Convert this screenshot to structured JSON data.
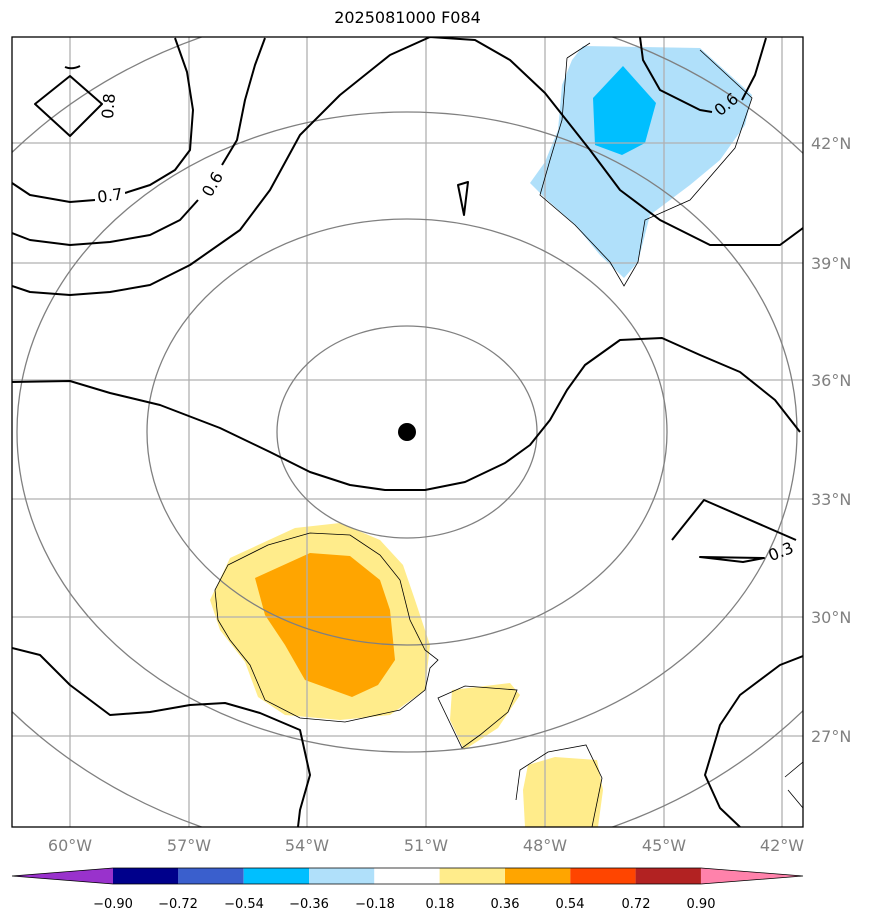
{
  "title": "2025081000 F084",
  "axes": {
    "lon_labels": [
      "60°W",
      "57°W",
      "54°W",
      "51°W",
      "48°W",
      "45°W",
      "42°W"
    ],
    "lat_labels": [
      "42°N",
      "39°N",
      "36°N",
      "33°N",
      "30°N",
      "27°N"
    ]
  },
  "contour_labels": [
    "0.8",
    "0.7",
    "0.6",
    "0.6",
    "0.3"
  ],
  "colorbar": {
    "ticks": [
      "−0.90",
      "−0.72",
      "−0.54",
      "−0.36",
      "−0.18",
      "0.18",
      "0.36",
      "0.54",
      "0.72",
      "0.90"
    ],
    "colors": [
      "#9932cc",
      "#00008b",
      "#3a5fcd",
      "#00bfff",
      "#b0e0fa",
      "#ffffff",
      "#ffec8b",
      "#ffa500",
      "#ff4500",
      "#b22222",
      "#ff82ab"
    ]
  },
  "colors": {
    "light_blue": "#b0e0fa",
    "deep_sky_blue": "#00bfff",
    "khaki": "#ffec8b",
    "orange": "#ffa500",
    "grid": "#b0b0b0",
    "range_ring": "#808080",
    "contour": "#000000"
  },
  "center_marker": "storm-center-dot"
}
